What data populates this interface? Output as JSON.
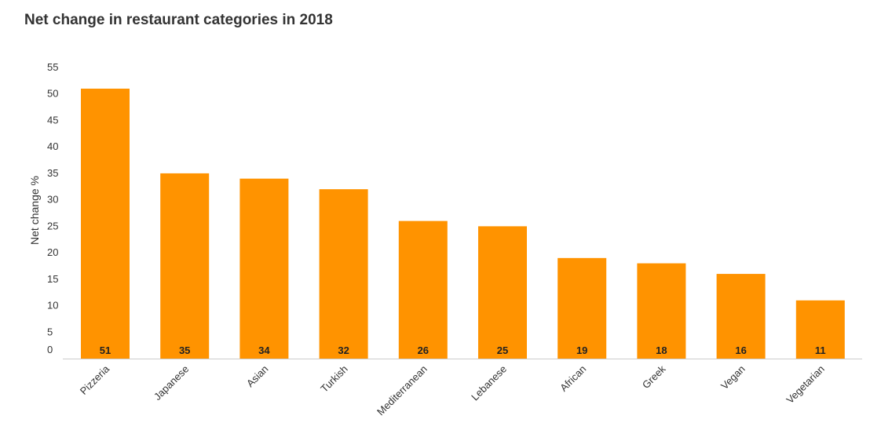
{
  "chart_data": {
    "type": "bar",
    "title": "Net change in restaurant categories in 2018",
    "xlabel": "",
    "ylabel": "Net change %",
    "ylim": [
      0,
      55
    ],
    "yticks": [
      0,
      5,
      10,
      15,
      20,
      25,
      30,
      35,
      40,
      45,
      50,
      55
    ],
    "grid": false,
    "legend": "none",
    "bar_color": "#FF9300",
    "categories": [
      "Pizzeria",
      "Japanese",
      "Asian",
      "Turkish",
      "Mediterranean",
      "Lebanese",
      "African",
      "Greek",
      "Vegan",
      "Vegetarian"
    ],
    "values": [
      51,
      35,
      34,
      32,
      26,
      25,
      19,
      18,
      16,
      11
    ],
    "data_labels": [
      "51",
      "35",
      "34",
      "32",
      "26",
      "25",
      "19",
      "18",
      "16",
      "11"
    ]
  }
}
